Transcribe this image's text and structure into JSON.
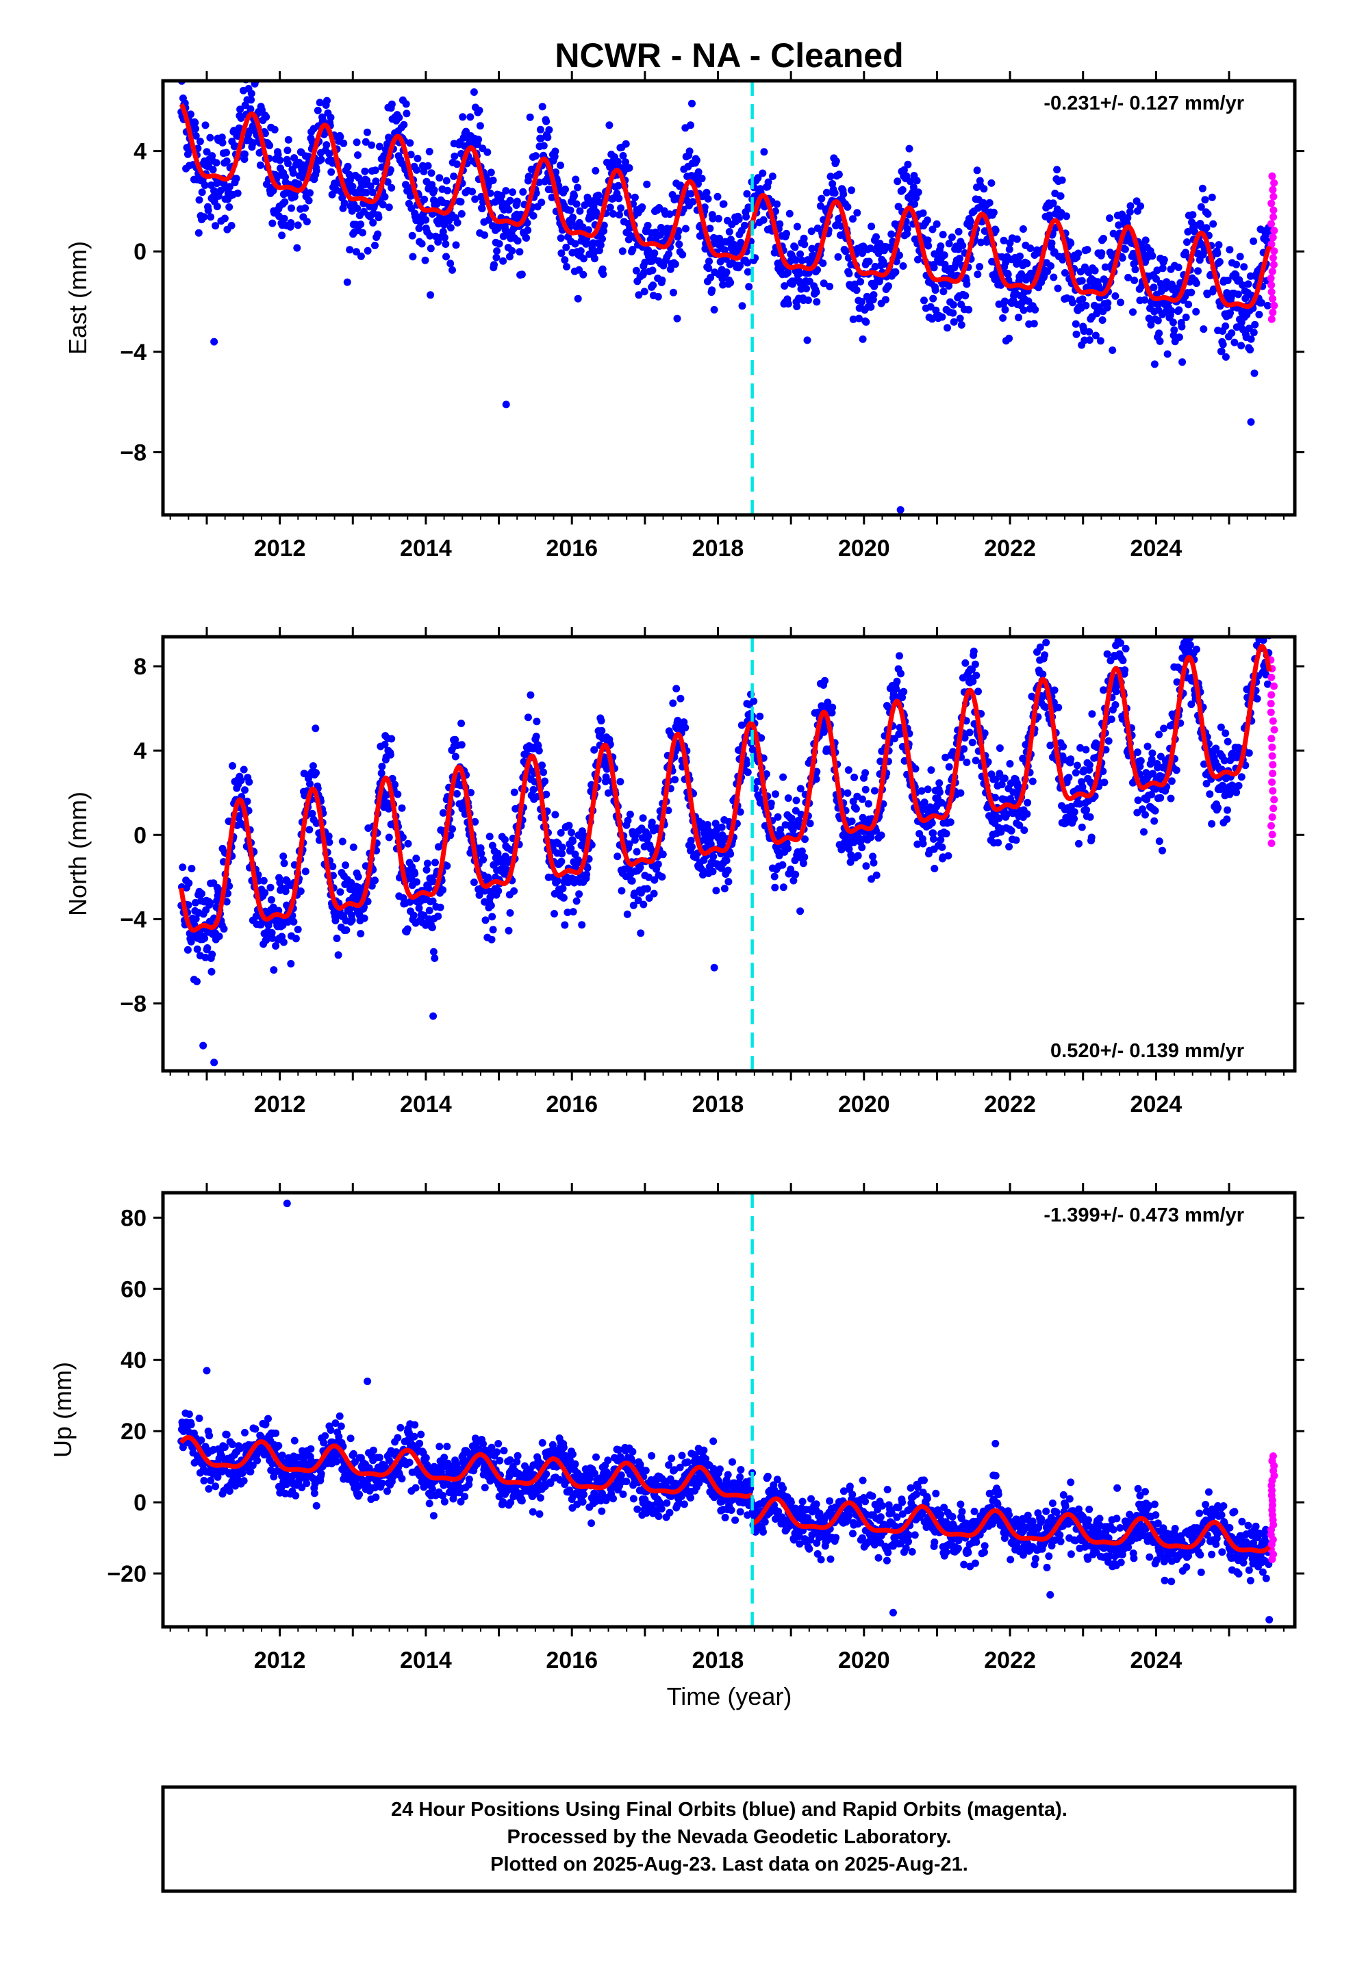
{
  "title": "NCWR  - NA - Cleaned",
  "colors": {
    "final": "#0000ff",
    "rapid": "#ff00ff",
    "model": "#ff0000",
    "equipment": "#00e5e5"
  },
  "xlabel": "Time (year)",
  "footer": {
    "line1": "24 Hour Positions Using Final Orbits (blue) and Rapid Orbits (magenta).",
    "line2": "Processed by the Nevada Geodetic Laboratory.",
    "line3": "Plotted on 2025-Aug-23. Last data on 2025-Aug-21."
  },
  "chart_data": [
    {
      "type": "scatter",
      "ylabel": "East (mm)",
      "rate_label": "-0.231+/- 0.127 mm/yr",
      "rate_position": "top-right",
      "xlim": [
        2010.4,
        2025.9
      ],
      "ylim": [
        -10.5,
        6.8
      ],
      "yticks": [
        4,
        0,
        -4,
        -8
      ],
      "yticklabels": [
        "4",
        "0",
        "−4",
        "−8"
      ],
      "xticks": [
        2012,
        2014,
        2016,
        2018,
        2020,
        2022,
        2024
      ],
      "xticklabels": [
        "2012",
        "2014",
        "2016",
        "2018",
        "2020",
        "2022",
        "2024"
      ],
      "equipment_change": 2018.47,
      "model": {
        "t0": 2010.65,
        "t1": 2025.55,
        "step": 2018.47,
        "segments": [
          {
            "start": 2010.65,
            "end": 2018.47,
            "offset": 4.1,
            "rate": -0.45,
            "amp": 1.35,
            "phase": 2010.62
          },
          {
            "start": 2018.47,
            "end": 2025.55,
            "offset": 0.45,
            "rate": -0.25,
            "amp": 1.35,
            "phase": 2018.62
          }
        ]
      },
      "scatter": {
        "final_noise": 1.0,
        "rapid_range": [
          -2.7,
          3.0
        ]
      },
      "outliers": [
        [
          2011.1,
          -3.6
        ],
        [
          2015.1,
          -6.1
        ],
        [
          2020.5,
          -10.3
        ],
        [
          2025.3,
          -6.8
        ]
      ]
    },
    {
      "type": "scatter",
      "ylabel": "North (mm)",
      "rate_label": "0.520+/- 0.139 mm/yr",
      "rate_position": "bottom-right",
      "xlim": [
        2010.4,
        2025.9
      ],
      "ylim": [
        -11.2,
        9.4
      ],
      "yticks": [
        8,
        4,
        0,
        -4,
        -8
      ],
      "yticklabels": [
        "8",
        "4",
        "0",
        "−4",
        "−8"
      ],
      "xticks": [
        2012,
        2014,
        2016,
        2018,
        2020,
        2022,
        2024
      ],
      "xticklabels": [
        "2012",
        "2014",
        "2016",
        "2018",
        "2020",
        "2022",
        "2024"
      ],
      "equipment_change": 2018.47,
      "model": {
        "t0": 2010.65,
        "t1": 2025.55,
        "segments": [
          {
            "start": 2010.65,
            "end": 2025.55,
            "offset": -2.6,
            "rate": 0.52,
            "amp": 2.85,
            "phase": 2011.45
          }
        ]
      },
      "scatter": {
        "final_noise": 1.05,
        "rapid_range": [
          -0.4,
          8.3
        ]
      },
      "outliers": [
        [
          2010.95,
          -10.0
        ],
        [
          2011.1,
          -10.8
        ],
        [
          2014.1,
          -8.6
        ],
        [
          2017.95,
          -6.3
        ]
      ]
    },
    {
      "type": "scatter",
      "ylabel": "Up (mm)",
      "rate_label": "-1.399+/- 0.473 mm/yr",
      "rate_position": "top-right",
      "xlim": [
        2010.4,
        2025.9
      ],
      "ylim": [
        -35,
        87
      ],
      "yticks": [
        80,
        60,
        40,
        20,
        0,
        -20
      ],
      "yticklabels": [
        "80",
        "60",
        "40",
        "20",
        "0",
        "−20"
      ],
      "xticks": [
        2012,
        2014,
        2016,
        2018,
        2020,
        2022,
        2024
      ],
      "xticklabels": [
        "2012",
        "2014",
        "2016",
        "2018",
        "2020",
        "2022",
        "2024"
      ],
      "equipment_change": 2018.47,
      "model": {
        "t0": 2010.65,
        "t1": 2025.55,
        "segments": [
          {
            "start": 2010.65,
            "end": 2018.47,
            "offset": 13.5,
            "rate": -1.2,
            "amp": 3.6,
            "phase": 2010.75
          },
          {
            "start": 2018.47,
            "end": 2025.55,
            "offset": -3.5,
            "rate": -1.1,
            "amp": 3.6,
            "phase": 2018.8
          }
        ]
      },
      "scatter": {
        "final_noise": 3.6,
        "rapid_range": [
          -16,
          13
        ]
      },
      "outliers": [
        [
          2012.1,
          84
        ],
        [
          2011.0,
          37
        ],
        [
          2013.2,
          34
        ],
        [
          2021.8,
          16.5
        ],
        [
          2020.4,
          -31
        ],
        [
          2025.55,
          -33
        ],
        [
          2022.55,
          -26
        ]
      ]
    }
  ]
}
